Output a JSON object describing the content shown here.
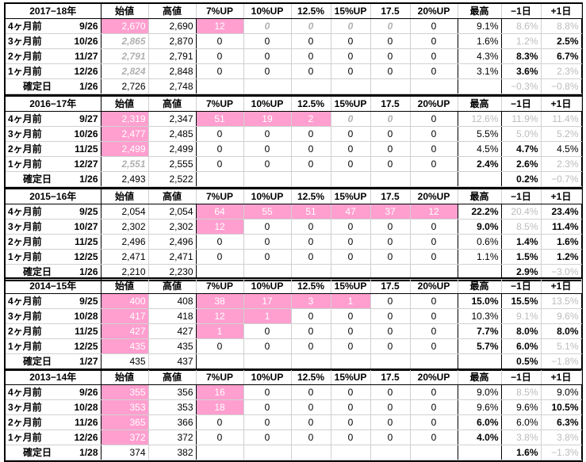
{
  "headers": [
    "始値",
    "高値",
    "7%UP",
    "10%UP",
    "12.5%",
    "15%UP",
    "17.5",
    "20%UP",
    "最高",
    "−1日",
    "+1日"
  ],
  "sections": [
    {
      "year": "2017−18年",
      "rows": [
        {
          "label": "4ヶ月前",
          "date": "9/26",
          "open": "2,670",
          "high": "2,690",
          "p7": "12",
          "p10": "0",
          "p125": "0",
          "p15": "0",
          "p175": "0",
          "p20": "0",
          "max": "9.1%",
          "m1": "8.6%",
          "p1": "8.8%"
        },
        {
          "label": "3ヶ月前",
          "date": "10/26",
          "open": "2,865",
          "high": "2,870",
          "p7": "0",
          "p10": "0",
          "p125": "0",
          "p15": "0",
          "p175": "0",
          "p20": "0",
          "max": "1.6%",
          "m1": "1.2%",
          "p1": "2.5%"
        },
        {
          "label": "2ヶ月前",
          "date": "11/27",
          "open": "2,791",
          "high": "2,791",
          "p7": "0",
          "p10": "0",
          "p125": "0",
          "p15": "0",
          "p175": "0",
          "p20": "0",
          "max": "4.3%",
          "m1": "8.3%",
          "p1": "6.7%"
        },
        {
          "label": "1ヶ月前",
          "date": "12/26",
          "open": "2,824",
          "high": "2,848",
          "p7": "0",
          "p10": "0",
          "p125": "0",
          "p15": "0",
          "p175": "0",
          "p20": "0",
          "max": "3.1%",
          "m1": "3.6%",
          "p1": "2.3%"
        }
      ],
      "final": {
        "label": "確定日",
        "date": "1/26",
        "open": "2,726",
        "high": "2,748",
        "m1": "−0.3%",
        "p1": "−0.8%"
      }
    },
    {
      "year": "2016−17年",
      "rows": [
        {
          "label": "4ヶ月前",
          "date": "9/27",
          "open": "2,319",
          "high": "2,347",
          "p7": "51",
          "p10": "19",
          "p125": "2",
          "p15": "0",
          "p175": "0",
          "p20": "0",
          "max": "12.6%",
          "m1": "11.9%",
          "p1": "11.4%"
        },
        {
          "label": "3ヶ月前",
          "date": "10/26",
          "open": "2,477",
          "high": "2,485",
          "p7": "0",
          "p10": "0",
          "p125": "0",
          "p15": "0",
          "p175": "0",
          "p20": "0",
          "max": "5.5%",
          "m1": "5.0%",
          "p1": "5.2%"
        },
        {
          "label": "2ヶ月前",
          "date": "11/25",
          "open": "2,499",
          "high": "2,499",
          "p7": "0",
          "p10": "0",
          "p125": "0",
          "p15": "0",
          "p175": "0",
          "p20": "0",
          "max": "4.5%",
          "m1": "4.7%",
          "p1": "4.5%"
        },
        {
          "label": "1ヶ月前",
          "date": "12/27",
          "open": "2,551",
          "high": "2,555",
          "p7": "0",
          "p10": "0",
          "p125": "0",
          "p15": "0",
          "p175": "0",
          "p20": "0",
          "max": "2.4%",
          "m1": "2.6%",
          "p1": "2.3%"
        }
      ],
      "final": {
        "label": "確定日",
        "date": "1/26",
        "open": "2,493",
        "high": "2,522",
        "m1": "0.2%",
        "p1": "−0.7%"
      }
    },
    {
      "year": "2015−16年",
      "rows": [
        {
          "label": "4ヶ月前",
          "date": "9/25",
          "open": "2,054",
          "high": "2,054",
          "p7": "64",
          "p10": "55",
          "p125": "51",
          "p15": "47",
          "p175": "37",
          "p20": "12",
          "max": "22.2%",
          "m1": "20.4%",
          "p1": "23.4%"
        },
        {
          "label": "3ヶ月前",
          "date": "10/27",
          "open": "2,302",
          "high": "2,302",
          "p7": "12",
          "p10": "0",
          "p125": "0",
          "p15": "0",
          "p175": "0",
          "p20": "0",
          "max": "9.0%",
          "m1": "8.5%",
          "p1": "11.4%"
        },
        {
          "label": "2ヶ月前",
          "date": "11/25",
          "open": "2,496",
          "high": "2,496",
          "p7": "0",
          "p10": "0",
          "p125": "0",
          "p15": "0",
          "p175": "0",
          "p20": "0",
          "max": "0.6%",
          "m1": "1.4%",
          "p1": "1.6%"
        },
        {
          "label": "1ヶ月前",
          "date": "12/25",
          "open": "2,471",
          "high": "2,471",
          "p7": "0",
          "p10": "0",
          "p125": "0",
          "p15": "0",
          "p175": "0",
          "p20": "0",
          "max": "1.1%",
          "m1": "1.5%",
          "p1": "1.2%"
        }
      ],
      "final": {
        "label": "確定日",
        "date": "1/26",
        "open": "2,210",
        "high": "2,230",
        "m1": "2.9%",
        "p1": "−3.0%"
      }
    },
    {
      "year": "2014−15年",
      "rows": [
        {
          "label": "4ヶ月前",
          "date": "9/25",
          "open": "400",
          "high": "408",
          "p7": "38",
          "p10": "17",
          "p125": "3",
          "p15": "1",
          "p175": "0",
          "p20": "0",
          "max": "15.0%",
          "m1": "15.5%",
          "p1": "13.5%"
        },
        {
          "label": "3ヶ月前",
          "date": "10/28",
          "open": "417",
          "high": "418",
          "p7": "12",
          "p10": "1",
          "p125": "0",
          "p15": "0",
          "p175": "0",
          "p20": "0",
          "max": "10.3%",
          "m1": "9.1%",
          "p1": "9.6%"
        },
        {
          "label": "2ヶ月前",
          "date": "11/25",
          "open": "427",
          "high": "427",
          "p7": "1",
          "p10": "0",
          "p125": "0",
          "p15": "0",
          "p175": "0",
          "p20": "0",
          "max": "7.7%",
          "m1": "8.0%",
          "p1": "8.0%"
        },
        {
          "label": "1ヶ月前",
          "date": "12/25",
          "open": "435",
          "high": "435",
          "p7": "0",
          "p10": "0",
          "p125": "0",
          "p15": "0",
          "p175": "0",
          "p20": "0",
          "max": "5.7%",
          "m1": "6.0%",
          "p1": "5.1%"
        }
      ],
      "final": {
        "label": "確定日",
        "date": "1/27",
        "open": "435",
        "high": "437",
        "m1": "0.5%",
        "p1": "−1.8%"
      }
    },
    {
      "year": "2013−14年",
      "rows": [
        {
          "label": "4ヶ月前",
          "date": "9/26",
          "open": "355",
          "high": "356",
          "p7": "16",
          "p10": "0",
          "p125": "0",
          "p15": "0",
          "p175": "0",
          "p20": "0",
          "max": "9.0%",
          "m1": "8.5%",
          "p1": "9.0%"
        },
        {
          "label": "3ヶ月前",
          "date": "10/28",
          "open": "353",
          "high": "353",
          "p7": "18",
          "p10": "0",
          "p125": "0",
          "p15": "0",
          "p175": "0",
          "p20": "0",
          "max": "9.6%",
          "m1": "9.6%",
          "p1": "10.5%"
        },
        {
          "label": "2ヶ月前",
          "date": "11/26",
          "open": "365",
          "high": "366",
          "p7": "0",
          "p10": "0",
          "p125": "0",
          "p15": "0",
          "p175": "0",
          "p20": "0",
          "max": "6.0%",
          "m1": "6.0%",
          "p1": "6.3%"
        },
        {
          "label": "1ヶ月前",
          "date": "12/26",
          "open": "372",
          "high": "372",
          "p7": "0",
          "p10": "0",
          "p125": "0",
          "p15": "0",
          "p175": "0",
          "p20": "0",
          "max": "4.0%",
          "m1": "3.8%",
          "p1": "3.8%"
        }
      ],
      "final": {
        "label": "確定日",
        "date": "1/28",
        "open": "374",
        "high": "382",
        "m1": "1.6%",
        "p1": "−1.3%"
      }
    }
  ]
}
